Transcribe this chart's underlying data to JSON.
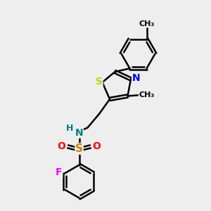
{
  "background_color": "#eeeeee",
  "bond_color": "#000000",
  "bond_width": 1.8,
  "S_thiazole_color": "#cccc00",
  "N_thiazole_color": "#0000ff",
  "S_sulfonyl_color": "#cc8800",
  "N_amine_color": "#008080",
  "H_amine_color": "#008080",
  "O_color": "#ff0000",
  "F_color": "#ff00ff",
  "font_size": 10,
  "fig_size": [
    3.0,
    3.0
  ],
  "dpi": 100,
  "xlim": [
    0,
    10
  ],
  "ylim": [
    0,
    10
  ]
}
